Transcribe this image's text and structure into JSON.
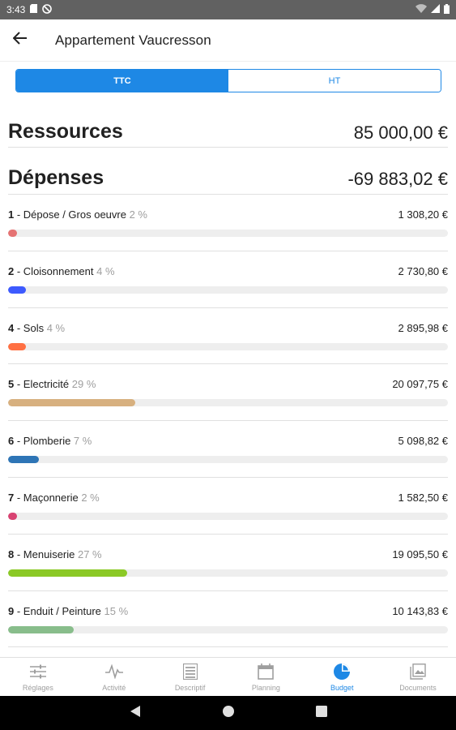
{
  "status_bar": {
    "time": "3:43"
  },
  "app_bar": {
    "title": "Appartement Vaucresson"
  },
  "tabs": [
    {
      "label": "TTC",
      "active": true
    },
    {
      "label": "HT",
      "active": false
    }
  ],
  "summary": {
    "resources_label": "Ressources",
    "resources_amount": "85 000,00 €",
    "expenses_label": "Dépenses",
    "expenses_amount": "-69 883,02 €"
  },
  "budget_items": [
    {
      "num": "1",
      "name": " - Dépose / Gros oeuvre",
      "pct": " 2 %",
      "amount": "1 308,20 €",
      "fraction": 0.02,
      "color": "#e57373"
    },
    {
      "num": "2",
      "name": " - Cloisonnement",
      "pct": " 4 %",
      "amount": "2 730,80 €",
      "fraction": 0.04,
      "color": "#3d5afe"
    },
    {
      "num": "4",
      "name": " - Sols",
      "pct": " 4 %",
      "amount": "2 895,98 €",
      "fraction": 0.04,
      "color": "#ff7043"
    },
    {
      "num": "5",
      "name": " - Electricité",
      "pct": " 29 %",
      "amount": "20 097,75 €",
      "fraction": 0.29,
      "color": "#d7b07f"
    },
    {
      "num": "6",
      "name": " - Plomberie",
      "pct": " 7 %",
      "amount": "5 098,82 €",
      "fraction": 0.07,
      "color": "#2e75b6"
    },
    {
      "num": "7",
      "name": " - Maçonnerie",
      "pct": " 2 %",
      "amount": "1 582,50 €",
      "fraction": 0.02,
      "color": "#d84372"
    },
    {
      "num": "8",
      "name": " - Menuiserie",
      "pct": " 27 %",
      "amount": "19 095,50 €",
      "fraction": 0.27,
      "color": "#8bc926"
    },
    {
      "num": "9",
      "name": " - Enduit / Peinture",
      "pct": " 15 %",
      "amount": "10 143,83 €",
      "fraction": 0.15,
      "color": "#88bd8b"
    }
  ],
  "bottom_nav": [
    {
      "label": "Réglages",
      "icon": "sliders-icon",
      "active": false
    },
    {
      "label": "Activité",
      "icon": "pulse-icon",
      "active": false
    },
    {
      "label": "Descriptif",
      "icon": "list-icon",
      "active": false
    },
    {
      "label": "Planning",
      "icon": "calendar-icon",
      "active": false
    },
    {
      "label": "Budget",
      "icon": "pie-chart-icon",
      "active": true
    },
    {
      "label": "Documents",
      "icon": "images-icon",
      "active": false
    }
  ],
  "colors": {
    "accent": "#1e88e5",
    "inactive": "#9e9e9e"
  }
}
